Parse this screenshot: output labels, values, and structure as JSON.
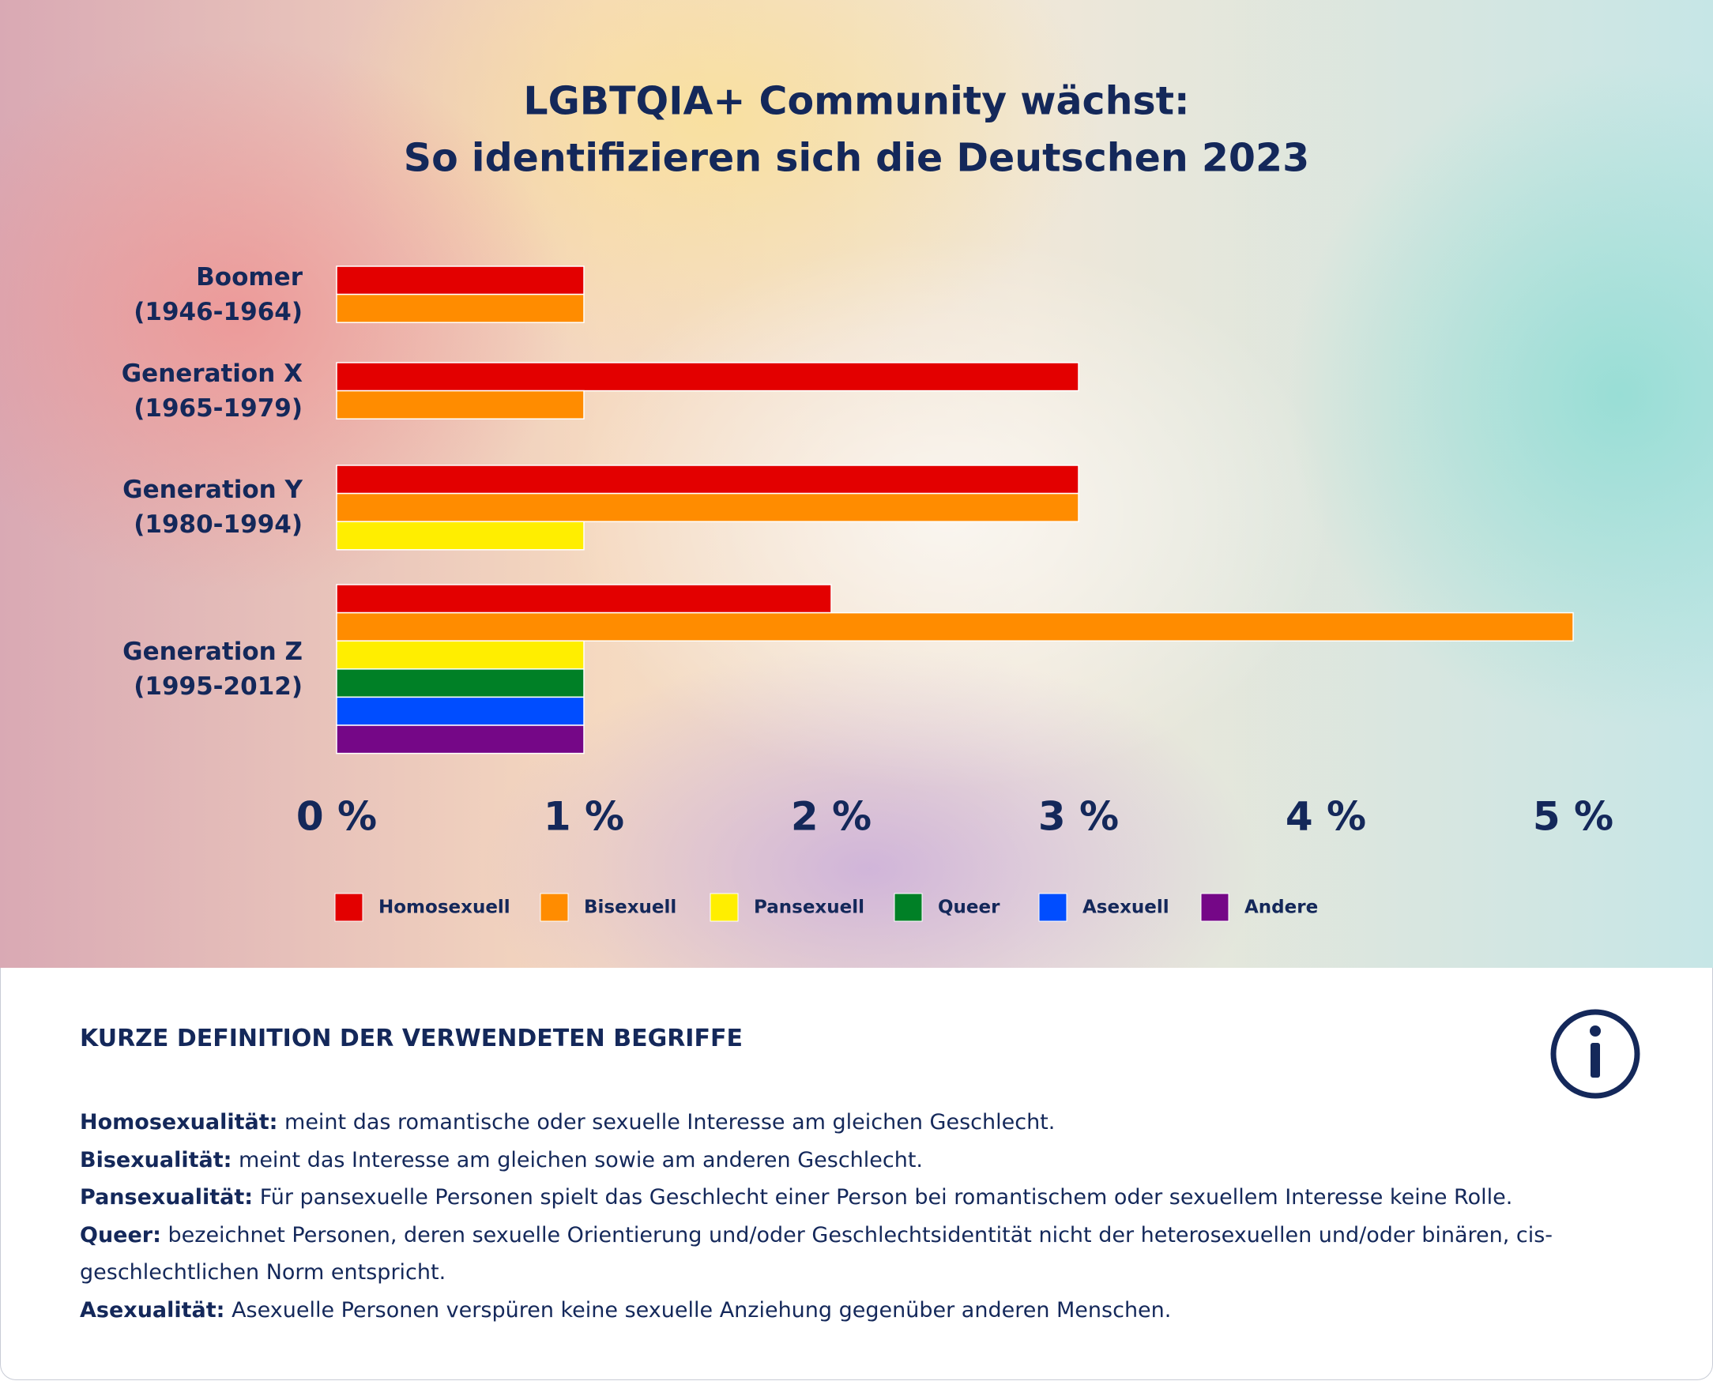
{
  "chart_data": {
    "type": "bar",
    "orientation": "horizontal",
    "title": "LGBTQIA+ Community wächst:",
    "subtitle": "So identifizieren sich die Deutschen 2023",
    "categories": [
      "Boomer\n(1946-1964)",
      "Generation X\n(1965-1979)",
      "Generation Y\n(1980-1994)",
      "Generation Z\n(1995-2012)"
    ],
    "series": [
      {
        "name": "Homosexuell",
        "color": "#e30000",
        "values": [
          1,
          3,
          3,
          2
        ]
      },
      {
        "name": "Bisexuell",
        "color": "#ff8c00",
        "values": [
          1,
          1,
          3,
          5
        ]
      },
      {
        "name": "Pansexuell",
        "color": "#ffee00",
        "values": [
          null,
          null,
          1,
          1
        ]
      },
      {
        "name": "Queer",
        "color": "#008026",
        "values": [
          null,
          null,
          null,
          1
        ]
      },
      {
        "name": "Asexuell",
        "color": "#004dff",
        "values": [
          null,
          null,
          null,
          1
        ]
      },
      {
        "name": "Andere",
        "color": "#750787",
        "values": [
          null,
          null,
          null,
          1
        ]
      }
    ],
    "xlim": [
      0,
      5
    ],
    "xticks": [
      {
        "value": 0,
        "label": "0 %"
      },
      {
        "value": 1,
        "label": "1 %"
      },
      {
        "value": 2,
        "label": "2 %"
      },
      {
        "value": 3,
        "label": "3 %"
      },
      {
        "value": 4,
        "label": "4 %"
      },
      {
        "value": 5,
        "label": "5 %"
      }
    ],
    "grid": false,
    "legend": "bottom"
  },
  "info": {
    "heading": "KURZE DEFINITION DER VERWENDETEN BEGRIFFE",
    "definitions": [
      {
        "term": "Homosexualität:",
        "text": "meint das romantische oder sexuelle Interesse am gleichen Geschlecht."
      },
      {
        "term": "Bisexualität:",
        "text": "meint das Interesse am gleichen sowie am anderen Geschlecht."
      },
      {
        "term": "Pansexualität:",
        "text": "Für pansexuelle Personen spielt das Geschlecht einer Person bei romantischem oder sexuellem Interesse keine Rolle."
      },
      {
        "term": "Queer:",
        "text": "bezeichnet Personen, deren sexuelle Orientierung und/oder Geschlechtsidentität nicht der heterosexuellen und/oder binären, cis-geschlechtlichen Norm entspricht."
      },
      {
        "term": "Asexualität:",
        "text": "Asexuelle Personen verspüren keine sexuelle Anziehung gegenüber anderen Menschen."
      }
    ]
  }
}
